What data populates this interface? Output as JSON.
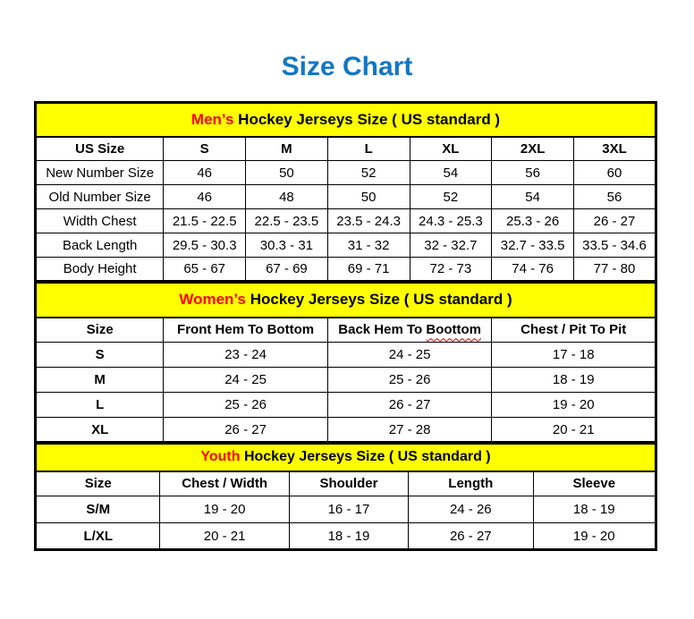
{
  "page": {
    "title": "Size Chart"
  },
  "colors": {
    "title_blue": "#1277C4",
    "banner_yellow": "#FFFF00",
    "accent_red": "#FF0000",
    "border_black": "#000000"
  },
  "mens": {
    "banner": {
      "highlight": "Men’s",
      "rest": " Hockey Jerseys Size ( US standard )"
    },
    "columns": [
      "US Size",
      "S",
      "M",
      "L",
      "XL",
      "2XL",
      "3XL"
    ],
    "rows": [
      {
        "label": "New Number Size",
        "values": [
          "46",
          "50",
          "52",
          "54",
          "56",
          "60"
        ]
      },
      {
        "label": "Old Number Size",
        "values": [
          "46",
          "48",
          "50",
          "52",
          "54",
          "56"
        ]
      },
      {
        "label": "Width Chest",
        "values": [
          "21.5 - 22.5",
          "22.5 - 23.5",
          "23.5 - 24.3",
          "24.3 - 25.3",
          "25.3 - 26",
          "26 - 27"
        ]
      },
      {
        "label": "Back Length",
        "values": [
          "29.5 - 30.3",
          "30.3 - 31",
          "31 - 32",
          "32 - 32.7",
          "32.7 - 33.5",
          "33.5 - 34.6"
        ]
      },
      {
        "label": "Body Height",
        "values": [
          "65 - 67",
          "67 - 69",
          "69 - 71",
          "72 - 73",
          "74 - 76",
          "77 - 80"
        ]
      }
    ]
  },
  "womens": {
    "banner": {
      "highlight": "Women’s",
      "rest": " Hockey Jerseys Size ( US standard )"
    },
    "columns": [
      "Size",
      "Front Hem To Bottom",
      "Back Hem To Boottom",
      "Chest / Pit To Pit"
    ],
    "squiggle_word": "Boottom",
    "rows": [
      {
        "label": "S",
        "values": [
          "23 - 24",
          "24 - 25",
          "17 - 18"
        ]
      },
      {
        "label": "M",
        "values": [
          "24 - 25",
          "25 - 26",
          "18 - 19"
        ]
      },
      {
        "label": "L",
        "values": [
          "25 - 26",
          "26 - 27",
          "19 - 20"
        ]
      },
      {
        "label": "XL",
        "values": [
          "26 - 27",
          "27 - 28",
          "20 - 21"
        ]
      }
    ]
  },
  "youth": {
    "banner": {
      "highlight": "Youth",
      "rest": " Hockey Jerseys Size ( US standard )"
    },
    "columns": [
      "Size",
      "Chest / Width",
      "Shoulder",
      "Length",
      "Sleeve"
    ],
    "rows": [
      {
        "label": "S/M",
        "values": [
          "19 - 20",
          "16 - 17",
          "24 - 26",
          "18 - 19"
        ]
      },
      {
        "label": "L/XL",
        "values": [
          "20 - 21",
          "18 - 19",
          "26 - 27",
          "19 - 20"
        ]
      }
    ]
  }
}
